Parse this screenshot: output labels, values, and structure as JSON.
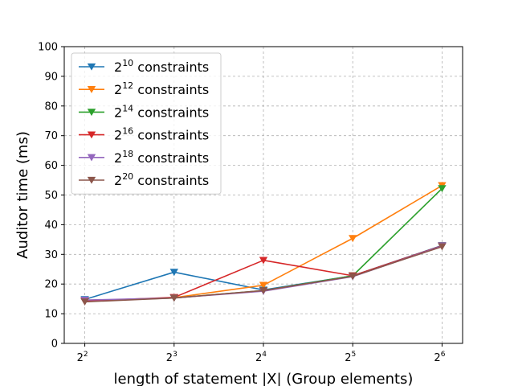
{
  "chart_data": {
    "type": "line",
    "x": [
      2,
      3,
      4,
      5,
      6
    ],
    "x_tick_base": "2",
    "x_tick_exponents": [
      "2",
      "3",
      "4",
      "5",
      "6"
    ],
    "xlabel": "length of statement |X| (Group elements)",
    "ylabel": "Auditor time (ms)",
    "ylim": [
      0,
      100
    ],
    "yticks": [
      0,
      10,
      20,
      30,
      40,
      50,
      60,
      70,
      80,
      90,
      100
    ],
    "grid": true,
    "grid_style": "dashed",
    "legend_position": "top-left",
    "marker": "down-triangle",
    "series": [
      {
        "name_base": "2",
        "name_exp": "10",
        "name_suffix": " constraints",
        "color": "#1f77b4",
        "values": [
          14.8,
          24.0,
          18.0,
          22.8,
          33.0
        ]
      },
      {
        "name_base": "2",
        "name_exp": "12",
        "name_suffix": " constraints",
        "color": "#ff7f0e",
        "values": [
          14.3,
          15.4,
          19.6,
          35.4,
          53.2
        ]
      },
      {
        "name_base": "2",
        "name_exp": "14",
        "name_suffix": " constraints",
        "color": "#2ca02c",
        "values": [
          14.3,
          15.3,
          17.8,
          22.8,
          52.2
        ]
      },
      {
        "name_base": "2",
        "name_exp": "16",
        "name_suffix": " constraints",
        "color": "#d62728",
        "values": [
          14.3,
          15.5,
          28.0,
          22.8,
          32.9
        ]
      },
      {
        "name_base": "2",
        "name_exp": "18",
        "name_suffix": " constraints",
        "color": "#9467bd",
        "values": [
          14.6,
          15.3,
          17.6,
          22.5,
          32.8
        ]
      },
      {
        "name_base": "2",
        "name_exp": "20",
        "name_suffix": " constraints",
        "color": "#8c564b",
        "values": [
          14.0,
          15.3,
          17.8,
          22.6,
          32.6
        ]
      }
    ]
  }
}
